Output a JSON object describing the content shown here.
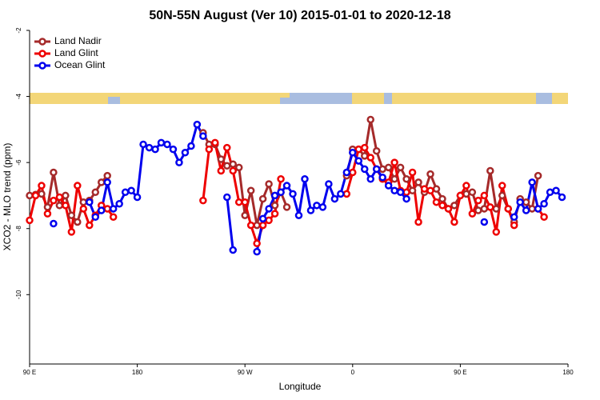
{
  "chart_data": {
    "type": "line",
    "title": "50N-55N August (Ver 10)   2015-01-01 to 2020-12-18",
    "x_label": "Longitude",
    "y_label": "XCO2 - MLO trend (ppm)",
    "x": [
      90,
      95,
      100,
      105,
      110,
      115,
      120,
      125,
      130,
      135,
      140,
      145,
      150,
      155,
      160,
      165,
      170,
      175,
      180,
      185,
      190,
      195,
      200,
      205,
      210,
      215,
      220,
      225,
      230,
      235,
      240,
      245,
      250,
      255,
      260,
      265,
      270,
      275,
      280,
      285,
      290,
      295,
      300,
      305,
      310,
      315,
      320,
      325,
      330,
      335,
      340,
      345,
      350,
      355,
      360,
      365,
      370,
      375,
      380,
      385,
      390,
      395,
      400,
      405,
      410,
      415,
      420,
      425,
      430,
      435,
      440,
      445,
      450,
      455,
      460,
      465,
      470,
      475,
      480,
      485,
      490,
      495,
      500,
      505,
      510,
      515,
      520,
      525,
      530,
      535,
      540
    ],
    "xlim": [
      90,
      540
    ],
    "xticks": [
      {
        "value": 90,
        "label": "90 E"
      },
      {
        "value": 180,
        "label": "180"
      },
      {
        "value": 270,
        "label": "90 W"
      },
      {
        "value": 360,
        "label": "0"
      },
      {
        "value": 450,
        "label": "90 E"
      },
      {
        "value": 540,
        "label": "180"
      }
    ],
    "ylim": [
      -12.1,
      -2
    ],
    "yticks": [
      -2,
      -4,
      -6,
      -8,
      -10
    ],
    "legend": "upper left",
    "series": [
      {
        "name": "Land Nadir",
        "color": "#a52a2a",
        "values": [
          -7.0,
          -6.97,
          -6.95,
          -7.35,
          -6.3,
          -7.3,
          -7.0,
          -7.6,
          -7.8,
          -7.2,
          -7.15,
          -6.9,
          -6.6,
          -6.4,
          null,
          null,
          null,
          null,
          null,
          null,
          null,
          null,
          null,
          null,
          null,
          null,
          null,
          null,
          null,
          -5.1,
          -5.45,
          -5.45,
          -5.9,
          -6.1,
          -6.05,
          -6.15,
          -7.6,
          -6.85,
          -7.9,
          -7.1,
          -6.65,
          -7.3,
          -6.9,
          -7.35,
          null,
          null,
          null,
          null,
          null,
          null,
          null,
          null,
          null,
          -6.4,
          -5.6,
          -5.6,
          -5.8,
          -4.7,
          -5.65,
          -6.2,
          -6.15,
          -6.5,
          -6.15,
          -6.5,
          -6.85,
          -6.6,
          -6.9,
          -6.35,
          -6.8,
          -7.1,
          -7.4,
          -7.3,
          -7.0,
          -6.95,
          -6.9,
          -7.45,
          -7.4,
          -6.25,
          -7.4,
          -7.0,
          -7.4,
          -7.8,
          -7.1,
          -7.2,
          -7.4,
          -6.4,
          null,
          null,
          null,
          null,
          null
        ]
      },
      {
        "name": "Land Glint",
        "color": "#ee0000",
        "values": [
          -7.75,
          -7.0,
          -6.7,
          -7.55,
          -7.15,
          -7.05,
          -7.3,
          -8.1,
          -6.7,
          -7.4,
          -7.9,
          -7.6,
          -7.3,
          -7.4,
          -7.65,
          null,
          null,
          null,
          null,
          null,
          null,
          null,
          null,
          null,
          null,
          null,
          null,
          null,
          null,
          -7.15,
          -5.6,
          -5.4,
          -6.25,
          -5.55,
          -6.25,
          -7.2,
          -7.2,
          -7.9,
          -8.45,
          -7.9,
          -7.75,
          -7.55,
          -6.5,
          null,
          null,
          null,
          null,
          null,
          null,
          null,
          null,
          null,
          null,
          -6.95,
          -6.3,
          -5.6,
          -5.55,
          -5.85,
          -6.2,
          -6.5,
          -6.6,
          -6.0,
          -6.85,
          -6.9,
          -6.3,
          -7.8,
          -6.8,
          -6.85,
          -7.2,
          -7.3,
          -7.4,
          -7.8,
          -7.0,
          -6.7,
          -7.55,
          -7.15,
          -7.0,
          -7.35,
          -8.1,
          -6.7,
          -7.4,
          -7.9,
          null,
          null,
          null,
          -7.4,
          -7.65,
          null,
          null,
          null,
          null
        ]
      },
      {
        "name": "Ocean Glint",
        "color": "#0000ee",
        "values": [
          null,
          null,
          null,
          null,
          -7.85,
          null,
          null,
          null,
          null,
          null,
          -7.2,
          -7.65,
          -7.45,
          -6.6,
          -7.4,
          -7.25,
          -6.9,
          -6.85,
          -7.05,
          -5.45,
          -5.55,
          -5.6,
          -5.4,
          -5.45,
          -5.6,
          -6.0,
          -5.7,
          -5.5,
          -4.85,
          -5.2,
          null,
          null,
          null,
          -7.05,
          -8.65,
          null,
          null,
          null,
          -8.7,
          -7.7,
          -7.4,
          -7.0,
          -6.9,
          -6.7,
          -6.95,
          -7.6,
          -6.5,
          -7.45,
          -7.3,
          -7.35,
          -6.65,
          -7.1,
          -6.95,
          -6.3,
          -5.7,
          -5.95,
          -6.2,
          -6.5,
          -6.2,
          -6.45,
          -6.7,
          -6.85,
          -6.9,
          -7.1,
          null,
          null,
          null,
          null,
          null,
          null,
          null,
          null,
          null,
          null,
          null,
          null,
          -7.8,
          null,
          null,
          null,
          null,
          -7.65,
          -7.2,
          -7.45,
          -6.6,
          -7.4,
          -7.25,
          -6.9,
          -6.85,
          -7.05,
          null
        ]
      }
    ]
  }
}
